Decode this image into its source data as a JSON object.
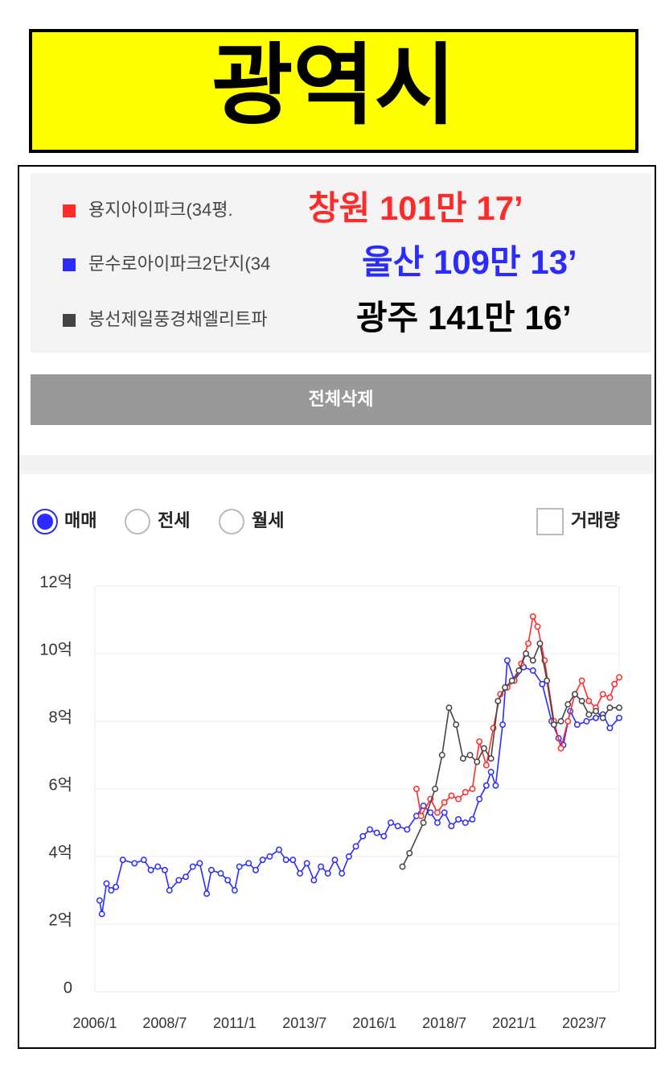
{
  "header": {
    "title": "광역시"
  },
  "controls": {
    "button": "전체삭제",
    "radios": [
      "매매",
      "전세",
      "월세"
    ],
    "checkbox": "거래량"
  },
  "chart_data": {
    "type": "line",
    "annotations": [
      "창원 101만 17’",
      "울산 109만 13’",
      "광주 141만 16’"
    ],
    "xlim": [
      "2006/1",
      "2024/10"
    ],
    "xticks": [
      "2006/1",
      "2008/7",
      "2011/1",
      "2013/7",
      "2016/1",
      "2018/7",
      "2021/1",
      "2023/7"
    ],
    "ylim": [
      0,
      12
    ],
    "yticks": [
      {
        "value": 0,
        "label": "0"
      },
      {
        "value": 2,
        "label": "2억"
      },
      {
        "value": 4,
        "label": "4억"
      },
      {
        "value": 6,
        "label": "6억"
      },
      {
        "value": 8,
        "label": "8억"
      },
      {
        "value": 10,
        "label": "10억"
      },
      {
        "value": 12,
        "label": "12억"
      }
    ],
    "grid": true,
    "series": [
      {
        "name": "용지아이파크(34평.",
        "color": "#ff2a2a",
        "x": [
          "2017/7",
          "2017/9",
          "2018/1",
          "2018/4",
          "2018/7",
          "2018/10",
          "2019/1",
          "2019/4",
          "2019/7",
          "2019/10",
          "2020/1",
          "2020/4",
          "2020/7",
          "2020/10",
          "2021/1",
          "2021/4",
          "2021/7",
          "2021/9",
          "2021/11",
          "2022/2",
          "2022/6",
          "2022/9",
          "2022/12",
          "2023/3",
          "2023/6",
          "2023/9",
          "2023/12",
          "2024/3",
          "2024/6",
          "2024/8",
          "2024/10"
        ],
        "values": [
          6.0,
          5.2,
          5.7,
          5.3,
          5.6,
          5.8,
          5.7,
          5.9,
          6.0,
          7.4,
          6.7,
          7.8,
          8.8,
          9.0,
          9.2,
          9.7,
          10.3,
          11.1,
          10.8,
          9.8,
          8.0,
          7.2,
          8.0,
          8.8,
          9.2,
          8.6,
          8.4,
          8.8,
          8.7,
          9.1,
          9.3
        ]
      },
      {
        "name": "문수로아이파크2단지(34",
        "color": "#2b2bff",
        "x": [
          "2006/3",
          "2006/4",
          "2006/6",
          "2006/8",
          "2006/10",
          "2007/1",
          "2007/6",
          "2007/10",
          "2008/1",
          "2008/4",
          "2008/7",
          "2008/9",
          "2009/1",
          "2009/4",
          "2009/7",
          "2009/10",
          "2010/1",
          "2010/3",
          "2010/7",
          "2010/10",
          "2011/1",
          "2011/3",
          "2011/7",
          "2011/10",
          "2012/1",
          "2012/4",
          "2012/8",
          "2012/11",
          "2013/2",
          "2013/5",
          "2013/8",
          "2013/11",
          "2014/2",
          "2014/5",
          "2014/8",
          "2014/11",
          "2015/2",
          "2015/5",
          "2015/8",
          "2015/11",
          "2016/2",
          "2016/5",
          "2016/8",
          "2016/11",
          "2017/3",
          "2017/7",
          "2017/10",
          "2018/1",
          "2018/4",
          "2018/7",
          "2018/10",
          "2019/1",
          "2019/4",
          "2019/7",
          "2019/10",
          "2020/1",
          "2020/3",
          "2020/5",
          "2020/8",
          "2020/10",
          "2021/1",
          "2021/5",
          "2021/9",
          "2022/1",
          "2022/5",
          "2022/8",
          "2022/10",
          "2023/1",
          "2023/4",
          "2023/8",
          "2023/12",
          "2024/3",
          "2024/6",
          "2024/10"
        ],
        "values": [
          2.7,
          2.3,
          3.2,
          3.0,
          3.1,
          3.9,
          3.8,
          3.9,
          3.6,
          3.7,
          3.6,
          3.0,
          3.3,
          3.4,
          3.7,
          3.8,
          2.9,
          3.6,
          3.5,
          3.3,
          3.0,
          3.7,
          3.8,
          3.6,
          3.9,
          4.0,
          4.2,
          3.9,
          3.9,
          3.5,
          3.8,
          3.3,
          3.7,
          3.5,
          3.9,
          3.5,
          4.0,
          4.3,
          4.6,
          4.8,
          4.7,
          4.6,
          5.0,
          4.9,
          4.8,
          5.2,
          5.5,
          5.3,
          5.0,
          5.3,
          4.9,
          5.1,
          5.0,
          5.1,
          5.7,
          6.1,
          6.5,
          6.1,
          7.9,
          9.8,
          9.2,
          9.6,
          9.5,
          9.1,
          8.0,
          7.5,
          7.3,
          8.3,
          7.9,
          8.0,
          8.1,
          8.2,
          7.8,
          8.1
        ]
      },
      {
        "name": "봉선제일풍경채엘리트파",
        "color": "#444444",
        "x": [
          "2017/1",
          "2017/4",
          "2017/10",
          "2018/3",
          "2018/6",
          "2018/9",
          "2018/12",
          "2019/3",
          "2019/6",
          "2019/9",
          "2019/12",
          "2020/3",
          "2020/6",
          "2020/9",
          "2020/12",
          "2021/3",
          "2021/6",
          "2021/9",
          "2021/12",
          "2022/3",
          "2022/6",
          "2022/9",
          "2022/12",
          "2023/3",
          "2023/6",
          "2023/9",
          "2023/12",
          "2024/3",
          "2024/6",
          "2024/10"
        ],
        "values": [
          3.7,
          4.1,
          5.0,
          6.0,
          7.0,
          8.4,
          7.9,
          6.9,
          7.0,
          6.8,
          7.2,
          6.9,
          8.6,
          9.0,
          9.2,
          9.5,
          10.0,
          9.8,
          10.3,
          9.2,
          7.9,
          8.0,
          8.5,
          8.8,
          8.6,
          8.2,
          8.3,
          8.1,
          8.4,
          8.4
        ]
      }
    ]
  }
}
